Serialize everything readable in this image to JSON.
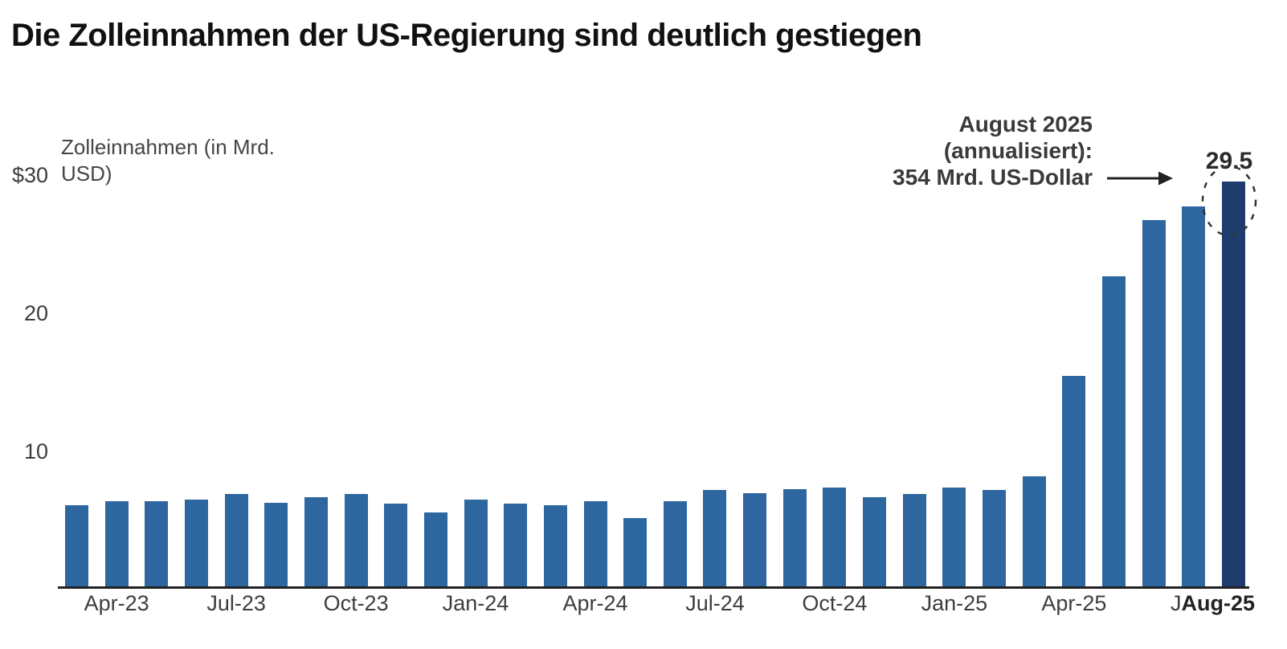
{
  "title": "Die Zolleinnahmen der US-Regierung sind deutlich gestiegen",
  "chart_data": {
    "type": "bar",
    "title": "Die Zolleinnahmen der US-Regierung sind deutlich gestiegen",
    "ylabel": "Zolleinnahmen (in Mrd. USD)",
    "ylabel_lines": [
      "Zolleinnahmen (in Mrd.",
      "USD)"
    ],
    "xlabel": "",
    "categories": [
      "Mar-23",
      "Apr-23",
      "May-23",
      "Jun-23",
      "Jul-23",
      "Aug-23",
      "Sep-23",
      "Oct-23",
      "Nov-23",
      "Dec-23",
      "Jan-24",
      "Feb-24",
      "Mar-24",
      "Apr-24",
      "May-24",
      "Jun-24",
      "Jul-24",
      "Aug-24",
      "Sep-24",
      "Oct-24",
      "Nov-24",
      "Dec-24",
      "Jan-25",
      "Feb-25",
      "Mar-25",
      "Apr-25",
      "May-25",
      "Jun-25",
      "Jul-25",
      "Aug-25"
    ],
    "values": [
      6.0,
      6.3,
      6.3,
      6.4,
      6.8,
      6.2,
      6.6,
      6.8,
      6.1,
      5.5,
      6.4,
      6.1,
      6.0,
      6.3,
      5.1,
      6.3,
      7.1,
      6.9,
      7.2,
      7.3,
      6.6,
      6.8,
      7.3,
      7.1,
      8.1,
      15.4,
      22.6,
      26.7,
      27.7,
      29.5
    ],
    "ylim": [
      0,
      32
    ],
    "ytick_values": [
      30,
      20,
      10
    ],
    "ytick_labels": [
      "$30",
      "20",
      "10"
    ],
    "xtick_labels": [
      "Apr-23",
      "Jul-23",
      "Oct-23",
      "Jan-24",
      "Apr-24",
      "Jul-24",
      "Oct-24",
      "Jan-25",
      "Apr-25"
    ],
    "final_tick": {
      "remnant": "J",
      "label": "Aug-25"
    },
    "grid": false,
    "legend": false,
    "bar_color": "#2e67a0",
    "highlight_color": "#1e3c6e",
    "highlight_index": 29,
    "annotation": {
      "lines": [
        "August 2025",
        "(annualisiert):",
        "354 Mrd. US-Dollar"
      ],
      "value_label": "29.5"
    }
  }
}
